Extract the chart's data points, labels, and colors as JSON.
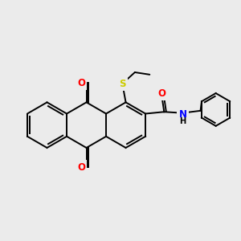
{
  "background_color": "#ebebeb",
  "bond_color": "#000000",
  "bond_lw": 1.4,
  "double_sep": 0.09,
  "shorten": 0.12,
  "atom_colors": {
    "O": "#ff0000",
    "S": "#cccc00",
    "N": "#0000ff"
  },
  "font_size": 8.5,
  "figsize": [
    3.0,
    3.0
  ],
  "dpi": 100
}
